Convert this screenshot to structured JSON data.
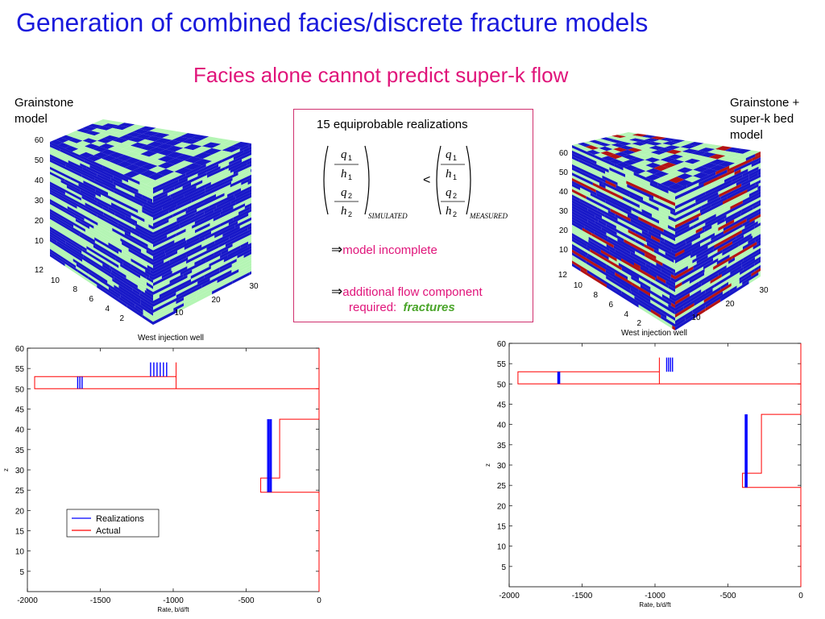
{
  "title": "Generation of combined facies/discrete fracture models",
  "subtitle": "Facies alone cannot predict super-k flow",
  "left_cube": {
    "label_line1": "Grainstone",
    "label_line2": "model",
    "z_ticks": [
      "60",
      "50",
      "40",
      "30",
      "20",
      "10"
    ],
    "y_ticks": [
      "12",
      "10",
      "8",
      "6",
      "4",
      "2"
    ],
    "x_ticks": [
      "30",
      "20",
      "10"
    ],
    "caption": "West injection well"
  },
  "right_cube": {
    "label_line1": "Grainstone +",
    "label_line2": "super-k bed",
    "label_line3": "model",
    "z_ticks": [
      "60",
      "50",
      "40",
      "30",
      "20",
      "10"
    ],
    "y_ticks": [
      "12",
      "10",
      "8",
      "6",
      "4",
      "2"
    ],
    "x_ticks": [
      "30",
      "20",
      "10"
    ],
    "caption": "West injection well"
  },
  "center_box": {
    "heading": "15 equiprobable realizations",
    "simulated_label": "SIMULATED",
    "measured_label": "MEASURED",
    "comparison": "<",
    "q1": "q",
    "h1": "h",
    "q2": "q",
    "h2": "h",
    "sub1": "1",
    "sub2": "2",
    "arrow": "⇒",
    "msg1": "model incomplete",
    "msg2_line1": "additional flow component",
    "msg2_line2": "required:",
    "msg2_fractures": "fractures"
  },
  "colors": {
    "title": "#1a1adc",
    "subtitle": "#e0147a",
    "facies_blue": "#1818c8",
    "facies_green": "#b4f5b4",
    "facies_red": "#b41414",
    "realization_line": "#0000ff",
    "actual_line": "#ff0000"
  },
  "chart_data": [
    {
      "type": "line",
      "xlabel": "Rate, b/d/ft",
      "ylabel": "z",
      "xlim": [
        -2000,
        0
      ],
      "ylim": [
        0,
        60
      ],
      "x_ticks": [
        "-2000",
        "-1500",
        "-1000",
        "-500",
        "0"
      ],
      "y_ticks": [
        "60",
        "55",
        "50",
        "45",
        "40",
        "35",
        "30",
        "25",
        "20",
        "15",
        "10",
        "5"
      ],
      "legend": {
        "placement": "lower-left",
        "entries": [
          "Realizations",
          "Actual"
        ]
      },
      "series": [
        {
          "name": "Actual",
          "points": [
            [
              0,
              60
            ],
            [
              0,
              50
            ],
            [
              -1950,
              50
            ],
            [
              -1950,
              53
            ],
            [
              -980,
              53
            ],
            [
              -980,
              56.5
            ],
            [
              -980,
              50
            ],
            [
              0,
              50
            ],
            [
              0,
              42.5
            ],
            [
              -270,
              42.5
            ],
            [
              -270,
              28
            ],
            [
              -400,
              28
            ],
            [
              -400,
              24.5
            ],
            [
              0,
              24.5
            ],
            [
              0,
              0
            ]
          ]
        },
        {
          "name": "Realizations",
          "segments": [
            {
              "x": -1640,
              "y0": 50,
              "y1": 53,
              "count": 3,
              "spread": 30
            },
            {
              "x": -1100,
              "y0": 53,
              "y1": 56.5,
              "count": 6,
              "spread": 110
            },
            {
              "x": -340,
              "y0": 24.5,
              "y1": 42.5,
              "count": 4,
              "spread": 25
            }
          ]
        }
      ]
    },
    {
      "type": "line",
      "xlabel": "Rate, b/d/ft",
      "ylabel": "z",
      "xlim": [
        -2000,
        0
      ],
      "ylim": [
        0,
        60
      ],
      "x_ticks": [
        "-2000",
        "-1500",
        "-1000",
        "-500",
        "0"
      ],
      "y_ticks": [
        "60",
        "55",
        "50",
        "45",
        "40",
        "35",
        "30",
        "25",
        "20",
        "15",
        "10",
        "5"
      ],
      "series": [
        {
          "name": "Actual",
          "points": [
            [
              0,
              60
            ],
            [
              0,
              50
            ],
            [
              -1940,
              50
            ],
            [
              -1940,
              53
            ],
            [
              -970,
              53
            ],
            [
              -970,
              56.5
            ],
            [
              -970,
              50
            ],
            [
              0,
              50
            ],
            [
              0,
              42.5
            ],
            [
              -270,
              42.5
            ],
            [
              -270,
              28
            ],
            [
              -400,
              28
            ],
            [
              -400,
              24.5
            ],
            [
              0,
              24.5
            ],
            [
              0,
              0
            ]
          ]
        },
        {
          "name": "Realizations",
          "segments": [
            {
              "x": -1660,
              "y0": 50,
              "y1": 53,
              "count": 3,
              "spread": 12
            },
            {
              "x": -900,
              "y0": 53,
              "y1": 56.5,
              "count": 4,
              "spread": 40
            },
            {
              "x": -375,
              "y0": 24.5,
              "y1": 42.5,
              "count": 3,
              "spread": 12
            }
          ]
        }
      ]
    }
  ]
}
